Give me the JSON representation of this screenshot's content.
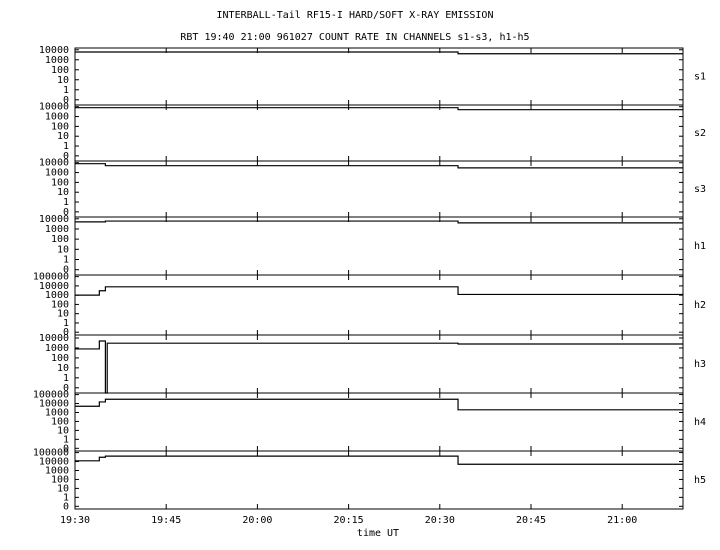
{
  "chart_data": {
    "type": "line",
    "title": "INTERBALL-Tail RF15-I HARD/SOFT X-RAY EMISSION",
    "subtitle": "RBT 19:40 21:00 961027  COUNT RATE IN CHANNELS s1-s3, h1-h5",
    "xlabel": "time UT",
    "xlim": [
      1170,
      1270
    ],
    "xticks": [
      {
        "value": 1170,
        "label": "19:30"
      },
      {
        "value": 1185,
        "label": "19:45"
      },
      {
        "value": 1200,
        "label": "20:00"
      },
      {
        "value": 1215,
        "label": "20:15"
      },
      {
        "value": 1230,
        "label": "20:30"
      },
      {
        "value": 1245,
        "label": "20:45"
      },
      {
        "value": 1260,
        "label": "21:00"
      }
    ],
    "log_scale": true,
    "color": "#000000",
    "panels": [
      {
        "label": "s1",
        "ylim": [
          0.03,
          15000
        ],
        "yticks": [
          10000,
          1000,
          100,
          10,
          1,
          {
            "value": 0.1,
            "label": "0"
          }
        ],
        "x": [
          1170,
          1233,
          1233,
          1270
        ],
        "values": [
          6000,
          6000,
          4000,
          4000
        ]
      },
      {
        "label": "s2",
        "ylim": [
          0.03,
          15000
        ],
        "yticks": [
          10000,
          1000,
          100,
          10,
          1,
          {
            "value": 0.1,
            "label": "0"
          }
        ],
        "x": [
          1170,
          1233,
          1233,
          1270
        ],
        "values": [
          8000,
          8000,
          5000,
          5000
        ]
      },
      {
        "label": "s3",
        "ylim": [
          0.03,
          15000
        ],
        "yticks": [
          10000,
          1000,
          100,
          10,
          1,
          {
            "value": 0.1,
            "label": "0"
          }
        ],
        "x": [
          1170,
          1175,
          1175,
          1233,
          1233,
          1270
        ],
        "values": [
          8000,
          8000,
          5000,
          5000,
          3000,
          3000
        ]
      },
      {
        "label": "h1",
        "ylim": [
          0.03,
          15000
        ],
        "yticks": [
          10000,
          1000,
          100,
          10,
          1,
          {
            "value": 0.1,
            "label": "0"
          }
        ],
        "x": [
          1170,
          1175,
          1175,
          1233,
          1233,
          1270
        ],
        "values": [
          5000,
          5000,
          6000,
          6000,
          4000,
          4000
        ]
      },
      {
        "label": "h2",
        "ylim": [
          0.05,
          150000
        ],
        "yticks": [
          100000,
          10000,
          1000,
          100,
          10,
          1,
          {
            "value": 0.1,
            "label": "0"
          }
        ],
        "x": [
          1170,
          1174,
          1174,
          1175,
          1175,
          1233,
          1233,
          1270
        ],
        "values": [
          1000,
          1000,
          3000,
          3000,
          8000,
          8000,
          1200,
          1200
        ]
      },
      {
        "label": "h3",
        "ylim": [
          0.03,
          20000
        ],
        "yticks": [
          10000,
          1000,
          100,
          10,
          1,
          {
            "value": 0.1,
            "label": "0"
          }
        ],
        "x": [
          1170,
          1174,
          1174,
          1175,
          1175,
          1175.3,
          1175.3,
          1233,
          1233,
          1270
        ],
        "values": [
          800,
          800,
          5000,
          5000,
          0.03,
          0.03,
          3000,
          3000,
          2500,
          2500
        ]
      },
      {
        "label": "h4",
        "ylim": [
          0.05,
          150000
        ],
        "yticks": [
          100000,
          10000,
          1000,
          100,
          10,
          1,
          {
            "value": 0.1,
            "label": "0"
          }
        ],
        "x": [
          1170,
          1174,
          1174,
          1175,
          1175,
          1233,
          1233,
          1270
        ],
        "values": [
          5000,
          5000,
          15000,
          15000,
          30000,
          30000,
          2000,
          2000
        ]
      },
      {
        "label": "h5",
        "ylim": [
          0.05,
          150000
        ],
        "yticks": [
          100000,
          10000,
          1000,
          100,
          10,
          1,
          {
            "value": 0.1,
            "label": "0"
          }
        ],
        "x": [
          1170,
          1174,
          1174,
          1175,
          1175,
          1233,
          1233,
          1270
        ],
        "values": [
          12000,
          12000,
          30000,
          30000,
          40000,
          40000,
          5000,
          5000
        ]
      }
    ]
  }
}
